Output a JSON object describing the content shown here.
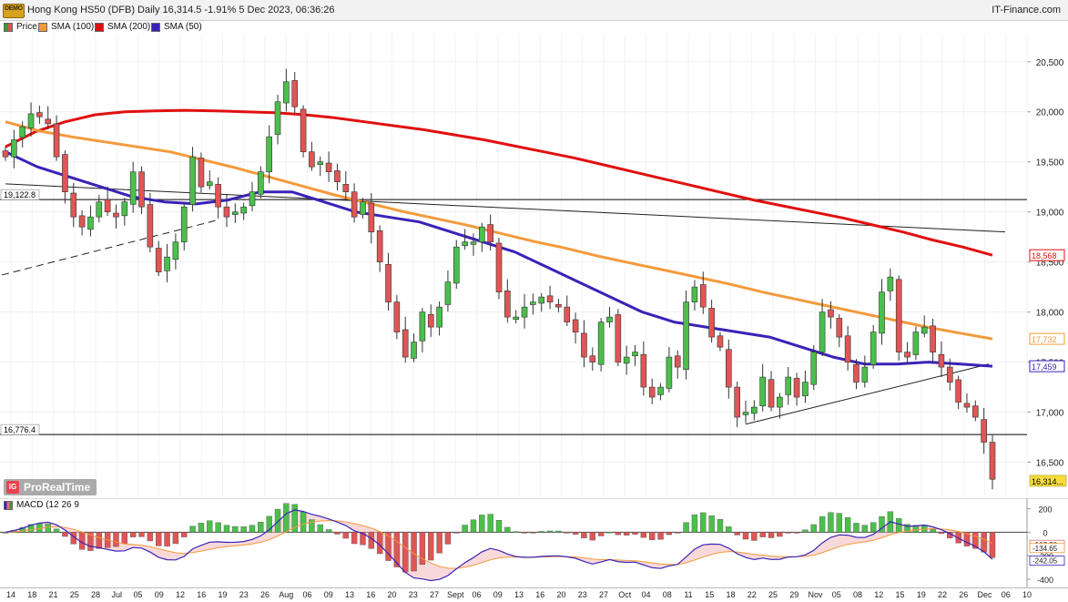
{
  "header": {
    "demo_badge": "DEMO",
    "title": "Hong Kong HS50 (DFB) Daily 16,314.5 -1.91% 5 Dec 2023, 06:36:26",
    "brand": "IT-Finance.com"
  },
  "legend": {
    "items": [
      {
        "label": "Price",
        "color": "#3a9a3a"
      },
      {
        "label": "SMA (100)",
        "color": "#f39a3c"
      },
      {
        "label": "SMA (200)",
        "color": "#e01010"
      },
      {
        "label": "SMA (50)",
        "color": "#3a22b8"
      }
    ]
  },
  "watermark": {
    "logo": "IG",
    "text": "ProRealTime"
  },
  "macd_label": "MACD (12 26 9",
  "chart_data": [
    {
      "type": "candlestick",
      "title": "Hong Kong HS50 (DFB) Daily",
      "ylim": [
        16150,
        20780
      ],
      "yticks": [
        16500,
        17000,
        17500,
        18000,
        18500,
        19000,
        19500,
        20000,
        20500
      ],
      "ytick_labels": [
        "16,500",
        "17,000",
        "17,500",
        "18,000",
        "18,500",
        "19,000",
        "19,500",
        "20,000",
        "20,500"
      ],
      "grid": true,
      "xticks": [
        "14",
        "18",
        "21",
        "25",
        "28",
        "Jul",
        "05",
        "09",
        "12",
        "16",
        "19",
        "23",
        "26",
        "Aug",
        "06",
        "09",
        "13",
        "16",
        "20",
        "23",
        "27",
        "Sept",
        "06",
        "09",
        "13",
        "16",
        "20",
        "23",
        "27",
        "Oct",
        "04",
        "08",
        "11",
        "15",
        "18",
        "22",
        "25",
        "29",
        "Nov",
        "05",
        "08",
        "12",
        "15",
        "19",
        "22",
        "26",
        "Dec",
        "06",
        "10"
      ],
      "last_price": {
        "label": "16,314...",
        "value": 16314.5,
        "color": "#f5dc3c"
      },
      "horizontal_levels": [
        {
          "label": "19,122.8",
          "value": 19122.8
        },
        {
          "label": "16,776.4",
          "value": 16776.4
        }
      ],
      "sma_tags": [
        {
          "label": "18,568",
          "value": 18568,
          "color": "#e01010"
        },
        {
          "label": "17,732",
          "value": 17732,
          "color": "#f39a3c"
        },
        {
          "label": "17,459",
          "value": 17459,
          "color": "#3a22b8"
        }
      ],
      "close_series": [
        19550,
        19720,
        19850,
        19980,
        19950,
        19880,
        19550,
        19200,
        18950,
        18850,
        18950,
        19100,
        19000,
        18950,
        19100,
        19400,
        19050,
        18650,
        18400,
        18550,
        18700,
        19050,
        19550,
        19250,
        19300,
        19050,
        18950,
        19000,
        19050,
        19200,
        19400,
        19750,
        20100,
        20300,
        20050,
        19600,
        19450,
        19500,
        19400,
        19300,
        19200,
        18950,
        19100,
        18800,
        18500,
        18100,
        17800,
        17550,
        17700,
        18000,
        17850,
        18050,
        18300,
        18650,
        18700,
        18700,
        18850,
        18700,
        18200,
        17950,
        17950,
        18050,
        18100,
        18150,
        18100,
        18050,
        17900,
        17800,
        17550,
        17500,
        17900,
        17950,
        17500,
        17550,
        17600,
        17250,
        17150,
        17250,
        17550,
        17450,
        18100,
        18250,
        18050,
        17750,
        17650,
        17250,
        16950,
        17000,
        17050,
        17350,
        17050,
        17150,
        17350,
        17150,
        17300,
        17600,
        18000,
        17950,
        17750,
        17500,
        17300,
        17450,
        17800,
        18200,
        18350,
        17600,
        17550,
        17800,
        17850,
        17600,
        17450,
        17300,
        17100,
        17050,
        16950,
        16700,
        16330
      ],
      "series": [
        {
          "name": "SMA (200)",
          "color": "#e01010",
          "values": [
            19650,
            19800,
            19900,
            19970,
            20000,
            20010,
            20015,
            20010,
            20000,
            19990,
            19970,
            19940,
            19900,
            19860,
            19820,
            19770,
            19720,
            19660,
            19600,
            19540,
            19470,
            19400,
            19330,
            19260,
            19190,
            19120,
            19060,
            19000,
            18940,
            18870,
            18800,
            18720,
            18650,
            18568
          ]
        },
        {
          "name": "SMA (100)",
          "color": "#f39a3c",
          "values": [
            19900,
            19810,
            19750,
            19700,
            19650,
            19600,
            19520,
            19440,
            19350,
            19260,
            19170,
            19090,
            19010,
            18940,
            18870,
            18790,
            18710,
            18640,
            18560,
            18490,
            18420,
            18350,
            18280,
            18200,
            18130,
            18060,
            17990,
            17920,
            17850,
            17790,
            17732
          ]
        },
        {
          "name": "SMA (50)",
          "color": "#3a22b8",
          "values": [
            19600,
            19450,
            19350,
            19250,
            19150,
            19100,
            19080,
            19120,
            19200,
            19200,
            19100,
            19000,
            18950,
            18900,
            18800,
            18700,
            18600,
            18450,
            18300,
            18150,
            18000,
            17900,
            17850,
            17800,
            17750,
            17650,
            17550,
            17480,
            17480,
            17500,
            17480,
            17459
          ]
        }
      ]
    },
    {
      "type": "bar",
      "title": "MACD (12 26 9",
      "ylim": [
        -470,
        290
      ],
      "yticks": [
        200,
        0,
        -200,
        -400
      ],
      "ytick_labels": [
        "200",
        "0",
        "-200",
        "-400"
      ],
      "tags": [
        {
          "label": "-107.20",
          "value": -107.2,
          "color": "#e07070"
        },
        {
          "label": "-134.65",
          "value": -134.65,
          "color": "#f39a3c"
        },
        {
          "label": "-242.05",
          "value": -242.05,
          "color": "#3a22b8"
        }
      ]
    }
  ]
}
